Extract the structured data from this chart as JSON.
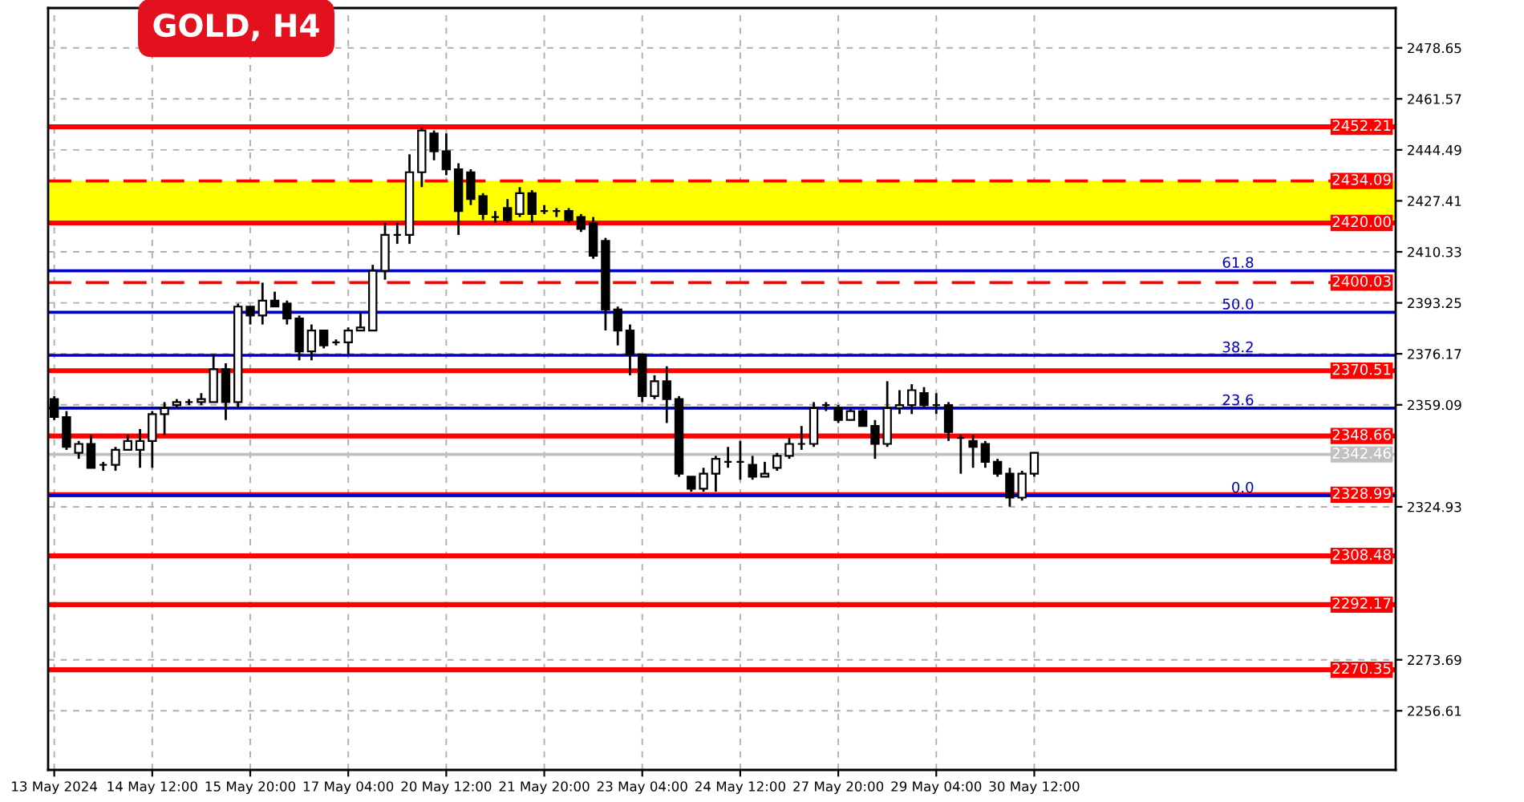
{
  "chart_data": {
    "type": "candlestick",
    "title": "GOLD, H4",
    "categories": [
      "13 May 2024",
      null,
      null,
      null,
      null,
      null,
      null,
      null,
      "14 May 12:00",
      null,
      null,
      null,
      null,
      null,
      null,
      null,
      "15 May 20:00",
      null,
      null,
      null,
      null,
      null,
      null,
      null,
      "17 May 04:00",
      null,
      null,
      null,
      null,
      null,
      null,
      null,
      "20 May 12:00",
      null,
      null,
      null,
      null,
      null,
      null,
      null,
      "21 May 20:00",
      null,
      null,
      null,
      null,
      null,
      null,
      null,
      "23 May 04:00",
      null,
      null,
      null,
      null,
      null,
      null,
      null,
      "24 May 12:00",
      null,
      null,
      null,
      null,
      null,
      null,
      null,
      "27 May 20:00",
      null,
      null,
      null,
      null,
      null,
      null,
      null,
      "29 May 04:00",
      null,
      null,
      null,
      null,
      null,
      null,
      null,
      "30 May 12:00",
      null,
      null,
      null,
      null,
      null,
      null,
      null,
      null,
      null,
      null,
      null,
      null,
      null,
      null,
      null,
      null,
      null,
      null,
      null,
      null,
      null,
      null,
      null,
      null,
      null,
      null,
      null,
      null,
      null
    ],
    "ohlc": [
      [
        2361,
        2362,
        2354,
        2355
      ],
      [
        2355,
        2357,
        2344,
        2345
      ],
      [
        2343,
        2347,
        2341,
        2346
      ],
      [
        2346,
        2349,
        2338,
        2338
      ],
      [
        2339,
        2340,
        2337,
        2339
      ],
      [
        2339,
        2345,
        2337,
        2344
      ],
      [
        2344,
        2349,
        2344,
        2347
      ],
      [
        2344,
        2351,
        2338,
        2347
      ],
      [
        2347,
        2357,
        2338,
        2356
      ],
      [
        2356,
        2360,
        2349,
        2358
      ],
      [
        2359,
        2361,
        2358,
        2360
      ],
      [
        2360,
        2361,
        2359,
        2360
      ],
      [
        2360,
        2363,
        2359,
        2361
      ],
      [
        2360,
        2376,
        2360,
        2371
      ],
      [
        2371,
        2373,
        2354,
        2360
      ],
      [
        2360,
        2393,
        2358,
        2392
      ],
      [
        2392,
        2392,
        2386,
        2389
      ],
      [
        2389,
        2400,
        2386,
        2394
      ],
      [
        2394,
        2397,
        2392,
        2392
      ],
      [
        2393,
        2394,
        2386,
        2388
      ],
      [
        2388,
        2389,
        2374,
        2377
      ],
      [
        2377,
        2386,
        2374,
        2384
      ],
      [
        2384,
        2384,
        2378,
        2379
      ],
      [
        2380,
        2381,
        2379,
        2380
      ],
      [
        2380,
        2385,
        2376,
        2384
      ],
      [
        2384,
        2390,
        2384,
        2385
      ],
      [
        2384,
        2406,
        2384,
        2404
      ],
      [
        2404,
        2420,
        2401,
        2416
      ],
      [
        2416,
        2420,
        2413,
        2416
      ],
      [
        2416,
        2443,
        2413,
        2437
      ],
      [
        2437,
        2452,
        2432,
        2451
      ],
      [
        2450,
        2451,
        2441,
        2444
      ],
      [
        2444,
        2450,
        2436,
        2438
      ],
      [
        2438,
        2440,
        2416,
        2424
      ],
      [
        2437,
        2438,
        2426,
        2428
      ],
      [
        2429,
        2430,
        2421,
        2423
      ],
      [
        2422,
        2424,
        2420,
        2422
      ],
      [
        2425,
        2428,
        2420,
        2421
      ],
      [
        2423,
        2432,
        2422,
        2430
      ],
      [
        2430,
        2431,
        2420,
        2423
      ],
      [
        2424,
        2426,
        2423,
        2424
      ],
      [
        2424,
        2425,
        2422,
        2424
      ],
      [
        2424,
        2425,
        2420,
        2421
      ],
      [
        2422,
        2423,
        2417,
        2418
      ],
      [
        2420,
        2422,
        2408,
        2409
      ],
      [
        2414,
        2415,
        2384,
        2391
      ],
      [
        2391,
        2392,
        2379,
        2384
      ],
      [
        2384,
        2386,
        2369,
        2376
      ],
      [
        2376,
        2376,
        2360,
        2362
      ],
      [
        2362,
        2369,
        2361,
        2367
      ],
      [
        2367,
        2372,
        2353,
        2361
      ],
      [
        2361,
        2362,
        2335,
        2336
      ],
      [
        2335,
        2335,
        2330,
        2331
      ],
      [
        2331,
        2338,
        2330,
        2336
      ],
      [
        2336,
        2342,
        2330,
        2341
      ],
      [
        2340,
        2345,
        2338,
        2340
      ],
      [
        2340,
        2347,
        2334,
        2340
      ],
      [
        2339,
        2342,
        2334,
        2335
      ],
      [
        2335,
        2340,
        2335,
        2336
      ],
      [
        2338,
        2343,
        2337,
        2342
      ],
      [
        2342,
        2348,
        2341,
        2346
      ],
      [
        2346,
        2352,
        2344,
        2346
      ],
      [
        2346,
        2360,
        2345,
        2358
      ],
      [
        2359,
        2360,
        2357,
        2359
      ],
      [
        2358,
        2359,
        2353,
        2354
      ],
      [
        2354,
        2358,
        2354,
        2357
      ],
      [
        2357,
        2358,
        2352,
        2352
      ],
      [
        2352,
        2354,
        2341,
        2346
      ],
      [
        2346,
        2367,
        2345,
        2358
      ],
      [
        2358,
        2364,
        2356,
        2359
      ],
      [
        2359,
        2366,
        2356,
        2364
      ],
      [
        2363,
        2365,
        2358,
        2359
      ],
      [
        2359,
        2363,
        2356,
        2359
      ],
      [
        2359,
        2360,
        2347,
        2350
      ],
      [
        2348,
        2349,
        2336,
        2348
      ],
      [
        2347,
        2349,
        2338,
        2345
      ],
      [
        2346,
        2347,
        2338,
        2340
      ],
      [
        2340,
        2341,
        2335,
        2336
      ],
      [
        2336,
        2338,
        2325,
        2328
      ],
      [
        2328,
        2337,
        2327,
        2336
      ],
      [
        2336,
        2343,
        2335,
        2343
      ],
      null,
      null,
      null,
      null,
      null,
      null,
      null,
      null,
      null,
      null,
      null,
      null,
      null,
      null,
      null,
      null,
      null,
      null,
      null,
      null,
      null,
      null,
      null,
      null,
      null,
      null,
      null,
      null,
      null
    ],
    "ylim": [
      2236.8,
      2492
    ],
    "yticks": [
      2256.61,
      2273.69,
      2324.93,
      2359.09,
      2376.17,
      2393.25,
      2410.33,
      2427.41,
      2444.49,
      2461.57,
      2478.65
    ],
    "bands": [
      {
        "axis": "y",
        "from": 2420,
        "to": 2434.09,
        "color": "#ffff00"
      }
    ],
    "ref_lines": [
      {
        "axis": "y",
        "value": 2452.21,
        "label": "2452.21",
        "color": "#ff0000",
        "line_style": "solid"
      },
      {
        "axis": "y",
        "value": 2434.09,
        "label": "2434.09",
        "color": "#ff0000",
        "line_style": "dashed"
      },
      {
        "axis": "y",
        "value": 2420.0,
        "label": "2420.00",
        "color": "#ff0000",
        "line_style": "solid"
      },
      {
        "axis": "y",
        "value": 2400.03,
        "label": "2400.03",
        "color": "#ff0000",
        "line_style": "dashed"
      },
      {
        "axis": "y",
        "value": 2370.51,
        "label": "2370.51",
        "color": "#ff0000",
        "line_style": "solid"
      },
      {
        "axis": "y",
        "value": 2348.66,
        "label": "2348.66",
        "color": "#ff0000",
        "line_style": "solid"
      },
      {
        "axis": "y",
        "value": 2342.46,
        "label": "2342.46",
        "color": "#c0c0c0",
        "line_style": "solid"
      },
      {
        "axis": "y",
        "value": 2328.99,
        "label": "2328.99",
        "color": "#ff0000",
        "line_style": "solid"
      },
      {
        "axis": "y",
        "value": 2308.48,
        "label": "2308.48",
        "color": "#ff0000",
        "line_style": "solid"
      },
      {
        "axis": "y",
        "value": 2292.17,
        "label": "2292.17",
        "color": "#ff0000",
        "line_style": "solid"
      },
      {
        "axis": "y",
        "value": 2270.35,
        "label": "2270.35",
        "color": "#ff0000",
        "line_style": "solid"
      },
      {
        "axis": "y",
        "value": 2404.0,
        "color": "#0000c0",
        "line_style": "solid"
      },
      {
        "axis": "y",
        "value": 2390.1,
        "color": "#0000c0",
        "line_style": "solid"
      },
      {
        "axis": "y",
        "value": 2375.7,
        "color": "#0000c0",
        "line_style": "solid"
      },
      {
        "axis": "y",
        "value": 2358.0,
        "color": "#0000c0",
        "line_style": "solid"
      },
      {
        "axis": "y",
        "value": 2328.7,
        "color": "#0000c0",
        "line_style": "solid"
      }
    ],
    "annotations": [
      {
        "text": "61.8",
        "y": 2404.0
      },
      {
        "text": "50.0",
        "y": 2390.1
      },
      {
        "text": "38.2",
        "y": 2375.7
      },
      {
        "text": "23.6",
        "y": 2358.0
      },
      {
        "text": "0.0",
        "y": 2328.7
      }
    ],
    "grid": true
  }
}
